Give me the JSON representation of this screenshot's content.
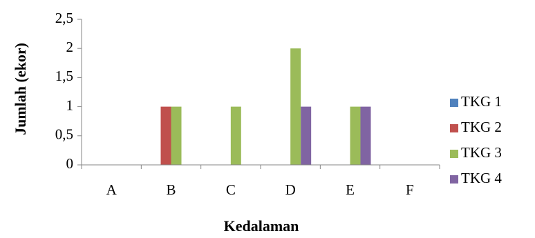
{
  "chart_data": {
    "type": "bar",
    "title": "",
    "xlabel": "Kedalaman",
    "ylabel": "Jumlah (ekor)",
    "categories": [
      "A",
      "B",
      "C",
      "D",
      "E",
      "F"
    ],
    "ylim": [
      0,
      2.5
    ],
    "yticks": [
      "0",
      "0,5",
      "1",
      "1,5",
      "2",
      "2,5"
    ],
    "grid": false,
    "legend_position": "right",
    "series": [
      {
        "name": "TKG 1",
        "color": "#4f81bd",
        "values": [
          0,
          0,
          0,
          0,
          0,
          0
        ]
      },
      {
        "name": "TKG 2",
        "color": "#c0504d",
        "values": [
          0,
          1,
          0,
          0,
          0,
          0
        ]
      },
      {
        "name": "TKG 3",
        "color": "#9bbb59",
        "values": [
          0,
          1,
          1,
          2,
          1,
          0
        ]
      },
      {
        "name": "TKG 4",
        "color": "#8064a2",
        "values": [
          0,
          0,
          0,
          1,
          1,
          0
        ]
      }
    ]
  }
}
